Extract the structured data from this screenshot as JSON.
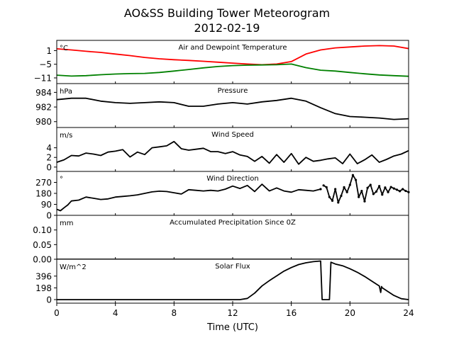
{
  "figure": {
    "title_line1": "AO&SS Building Tower Meteorogram",
    "title_line2": "2012-02-19",
    "xlabel": "Time (UTC)"
  },
  "x_axis": {
    "range": [
      0,
      24
    ],
    "ticks": [
      0,
      4,
      8,
      12,
      16,
      20,
      24
    ],
    "tick_labels": [
      "0",
      "4",
      "8",
      "12",
      "16",
      "20",
      "24"
    ]
  },
  "chart_data": [
    {
      "type": "line",
      "title": "Air and Dewpoint Temperature",
      "unit": "°C",
      "ylim": [
        -13.5,
        5.5
      ],
      "yticks": [
        1,
        -5,
        -11
      ],
      "ytick_labels": [
        "1",
        "−5",
        "−11"
      ],
      "series": [
        {
          "color": "#ff0000",
          "x": [
            0,
            1,
            2,
            3,
            4,
            5,
            6,
            7,
            8,
            9,
            10,
            11,
            12,
            13,
            14,
            15,
            16,
            17,
            18,
            19,
            20,
            21,
            22,
            23,
            24
          ],
          "values": [
            1.8,
            1.3,
            0.7,
            0.2,
            -0.5,
            -1.2,
            -2.0,
            -2.6,
            -3.0,
            -3.3,
            -3.7,
            -4.1,
            -4.5,
            -4.9,
            -5.2,
            -4.9,
            -3.8,
            -0.5,
            1.3,
            2.2,
            2.6,
            3.0,
            3.2,
            3.0,
            1.9
          ]
        },
        {
          "color": "#008000",
          "x": [
            0,
            1,
            2,
            3,
            4,
            5,
            6,
            7,
            8,
            9,
            10,
            11,
            12,
            13,
            14,
            15,
            16,
            17,
            18,
            19,
            20,
            21,
            22,
            23,
            24
          ],
          "values": [
            -9.8,
            -10.2,
            -10.0,
            -9.6,
            -9.3,
            -9.1,
            -9.0,
            -8.6,
            -8.0,
            -7.3,
            -6.6,
            -6.0,
            -5.6,
            -5.4,
            -5.3,
            -5.2,
            -4.9,
            -6.5,
            -7.6,
            -8.0,
            -8.6,
            -9.2,
            -9.7,
            -10.0,
            -10.3
          ]
        }
      ]
    },
    {
      "type": "line",
      "title": "Pressure",
      "unit": "hPa",
      "ylim": [
        979.2,
        985.2
      ],
      "yticks": [
        984,
        982,
        980
      ],
      "ytick_labels": [
        "984",
        "982",
        "980"
      ],
      "series": [
        {
          "color": "#000000",
          "x": [
            0,
            1,
            2,
            3,
            4,
            5,
            6,
            7,
            8,
            9,
            10,
            11,
            12,
            13,
            14,
            15,
            16,
            17,
            18,
            19,
            20,
            21,
            22,
            23,
            24
          ],
          "values": [
            983.0,
            983.2,
            983.2,
            982.8,
            982.6,
            982.5,
            982.6,
            982.7,
            982.6,
            982.1,
            982.1,
            982.4,
            982.6,
            982.4,
            982.7,
            982.9,
            983.2,
            982.8,
            981.9,
            981.1,
            980.7,
            980.6,
            980.5,
            980.3,
            980.4
          ]
        }
      ]
    },
    {
      "type": "line",
      "title": "Wind Speed",
      "unit": "m/s",
      "ylim": [
        -0.9,
        8.2
      ],
      "yticks": [
        4,
        2,
        0
      ],
      "ytick_labels": [
        "4",
        "2",
        "0"
      ],
      "series": [
        {
          "color": "#000000",
          "x": [
            0,
            0.5,
            1,
            1.5,
            2,
            2.5,
            3,
            3.5,
            4,
            4.5,
            5,
            5.5,
            6,
            6.5,
            7,
            7.5,
            8,
            8.5,
            9,
            9.5,
            10,
            10.5,
            11,
            11.5,
            12,
            12.5,
            13,
            13.5,
            14,
            14.5,
            15,
            15.5,
            16,
            16.5,
            17,
            17.5,
            18,
            18.5,
            19,
            19.5,
            20,
            20.5,
            21,
            21.5,
            22,
            22.5,
            23,
            23.5,
            24
          ],
          "values": [
            1.0,
            1.5,
            2.4,
            2.3,
            2.9,
            2.7,
            2.4,
            3.1,
            3.3,
            3.6,
            2.1,
            3.1,
            2.6,
            4.0,
            4.2,
            4.4,
            5.3,
            3.8,
            3.5,
            3.7,
            3.9,
            3.2,
            3.2,
            2.8,
            3.2,
            2.5,
            2.2,
            1.2,
            2.2,
            0.8,
            2.6,
            1.0,
            2.8,
            0.6,
            2.0,
            1.2,
            1.4,
            1.7,
            1.9,
            0.7,
            2.7,
            0.7,
            1.5,
            2.5,
            1.0,
            1.6,
            2.3,
            2.7,
            3.4
          ]
        }
      ]
    },
    {
      "type": "line",
      "title": "Wind Direction",
      "unit": "°",
      "ylim": [
        0,
        360
      ],
      "yticks": [
        270,
        180,
        90,
        0
      ],
      "ytick_labels": [
        "270",
        "180",
        "90",
        "0"
      ],
      "series": [
        {
          "color": "#000000",
          "x": [
            0,
            0.25,
            0.5,
            0.75,
            1,
            1.5,
            2,
            2.5,
            3,
            3.5,
            4,
            4.5,
            5,
            5.5,
            6,
            6.5,
            7,
            7.5,
            8,
            8.5,
            9,
            9.5,
            10,
            10.5,
            11,
            11.5,
            12,
            12.5,
            13,
            13.5,
            14,
            14.5,
            15,
            15.5,
            16,
            16.5,
            17,
            17.5,
            18
          ],
          "values": [
            50,
            38,
            62,
            85,
            118,
            125,
            150,
            140,
            130,
            135,
            150,
            155,
            160,
            168,
            180,
            192,
            198,
            195,
            185,
            175,
            210,
            205,
            200,
            205,
            200,
            215,
            240,
            220,
            245,
            195,
            255,
            200,
            225,
            200,
            190,
            210,
            205,
            200,
            215
          ]
        },
        {
          "color": "#000000",
          "x": [
            18.2,
            18.4,
            18.6,
            18.8,
            19.0,
            19.2,
            19.4,
            19.6,
            19.8,
            20.0,
            20.2,
            20.4,
            20.6,
            20.8,
            21.0,
            21.2,
            21.4,
            21.6,
            21.8,
            22.0,
            22.2,
            22.4,
            22.6,
            22.8,
            23.0,
            23.2,
            23.4,
            23.6,
            23.8,
            24.0
          ],
          "values": [
            245,
            230,
            150,
            120,
            215,
            105,
            160,
            230,
            190,
            250,
            330,
            290,
            150,
            200,
            115,
            225,
            250,
            175,
            195,
            240,
            170,
            228,
            190,
            232,
            220,
            210,
            198,
            215,
            200,
            190
          ]
        }
      ]
    },
    {
      "type": "line",
      "title": "Accumulated Precipitation Since 0Z",
      "unit": "mm",
      "ylim": [
        0,
        0.15
      ],
      "yticks": [
        0.1,
        0.05,
        0.0
      ],
      "ytick_labels": [
        "0.10",
        "0.05",
        "0.00"
      ],
      "series": [
        {
          "color": "#000000",
          "x": [
            0,
            24
          ],
          "values": [
            0,
            0
          ]
        }
      ]
    },
    {
      "type": "line",
      "title": "Solar Flux",
      "unit": "W/m^2",
      "ylim": [
        -60,
        680
      ],
      "yticks": [
        396,
        198,
        0
      ],
      "ytick_labels": [
        "396",
        "198",
        "0"
      ],
      "series": [
        {
          "color": "#000000",
          "x": [
            0,
            12.5,
            13,
            13.5,
            14,
            14.5,
            15,
            15.5,
            16,
            16.5,
            17,
            17.5,
            18,
            18.1,
            18.2,
            18.6,
            18.7,
            19,
            19.5,
            20,
            20.5,
            21,
            21.5,
            22,
            22.1,
            22.15,
            22.2,
            22.5,
            23,
            23.5,
            24
          ],
          "values": [
            0,
            0,
            20,
            110,
            230,
            320,
            400,
            480,
            540,
            590,
            620,
            640,
            650,
            0,
            0,
            0,
            630,
            600,
            570,
            520,
            460,
            390,
            310,
            230,
            120,
            220,
            200,
            150,
            70,
            15,
            0
          ]
        }
      ]
    }
  ]
}
